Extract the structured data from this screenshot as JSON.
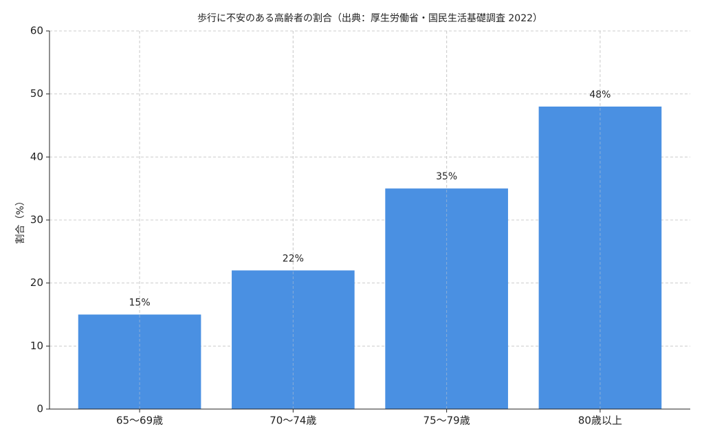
{
  "chart_data": {
    "type": "bar",
    "title": "歩行に不安のある高齢者の割合（出典：厚生労働省・国民生活基礎調査 2022）",
    "ylabel": "割合（%）",
    "categories": [
      "65〜69歳",
      "70〜74歳",
      "75〜79歳",
      "80歳以上"
    ],
    "values": [
      15,
      22,
      35,
      48
    ],
    "value_labels": [
      "15%",
      "22%",
      "35%",
      "48%"
    ],
    "color": "#4a90e2",
    "ylim": [
      0,
      60
    ],
    "yticks": [
      0,
      10,
      20,
      30,
      40,
      50,
      60
    ],
    "grid": true
  }
}
